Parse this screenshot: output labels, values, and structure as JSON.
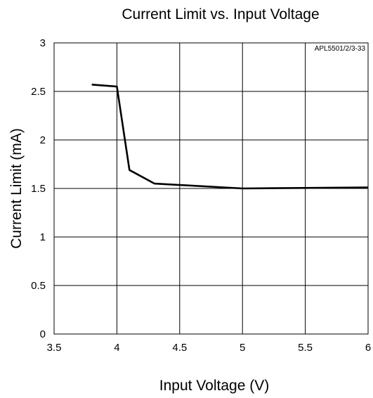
{
  "chart_data": {
    "type": "line",
    "title": "Current Limit vs. Input Voltage",
    "annotation": "APL5501/2/3-33",
    "xlabel": "Input Voltage (V)",
    "ylabel": "Current Limit (mA)",
    "xlim": [
      3.5,
      6
    ],
    "ylim": [
      0,
      3
    ],
    "x_ticks": [
      3.5,
      4,
      4.5,
      5,
      5.5,
      6
    ],
    "x_tick_labels": [
      "3.5",
      "4",
      "4.5",
      "5",
      "5.5",
      "6"
    ],
    "y_ticks": [
      0,
      0.5,
      1,
      1.5,
      2,
      2.5,
      3
    ],
    "y_tick_labels": [
      "0",
      "0.5",
      "1",
      "1.5",
      "2",
      "2.5",
      "3"
    ],
    "grid": true,
    "series": [
      {
        "x": [
          3.8,
          4.0,
          4.1,
          4.3,
          5.0,
          6.0
        ],
        "y": [
          2.57,
          2.55,
          1.69,
          1.55,
          1.5,
          1.51
        ],
        "color": "#000000"
      }
    ]
  }
}
